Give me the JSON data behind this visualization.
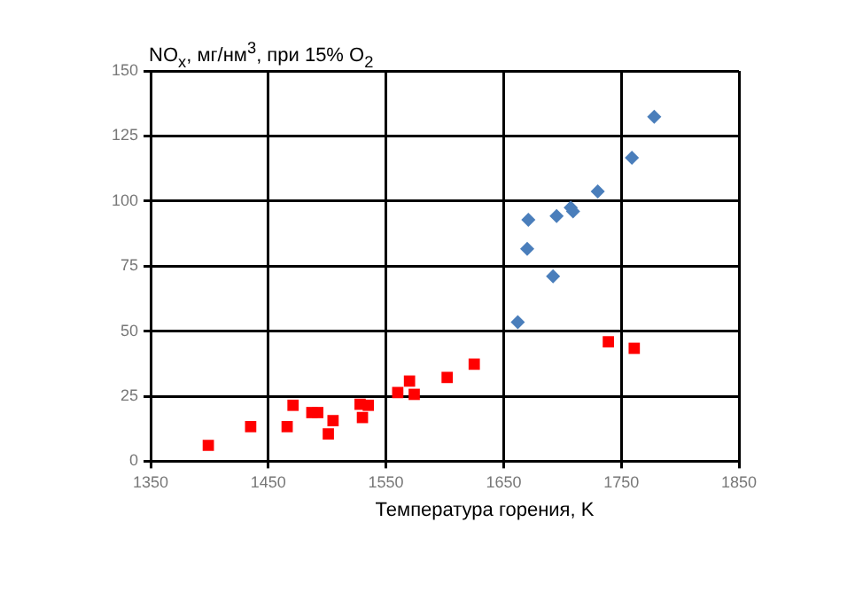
{
  "chart_data": {
    "type": "scatter",
    "ylabel": "NO$_{x}$, мг/нм$^{3}$, при 15% O$_{2}$",
    "xlabel": "Температура горения,  K",
    "xlim": [
      1350,
      1850
    ],
    "xticks": [
      1350,
      1450,
      1550,
      1650,
      1750,
      1850
    ],
    "ylim": [
      0,
      150
    ],
    "yticks": [
      0,
      25,
      50,
      75,
      100,
      125,
      150
    ],
    "grid": true,
    "legend": false,
    "series": [
      {
        "color": "#4a7ebb",
        "marker": "diamond",
        "x": [
          1662,
          1692,
          1671,
          1670,
          1695,
          1707,
          1709,
          1730,
          1759,
          1778
        ],
        "values": [
          53.4,
          71.1,
          92.8,
          81.6,
          94.2,
          97.5,
          96,
          103.7,
          116.6,
          132.4
        ]
      },
      {
        "color": "#ff0000",
        "marker": "square",
        "x": [
          1399,
          1435,
          1466,
          1471,
          1487,
          1492,
          1501,
          1505,
          1528,
          1530,
          1535,
          1560,
          1570,
          1574,
          1602,
          1625,
          1739,
          1761
        ],
        "values": [
          6.1,
          13.3,
          13.3,
          21.5,
          18.7,
          18.7,
          10.5,
          15.6,
          21.9,
          16.8,
          21.5,
          26.4,
          30.8,
          25.7,
          32.2,
          37.3,
          45.9,
          43.4
        ]
      }
    ]
  }
}
